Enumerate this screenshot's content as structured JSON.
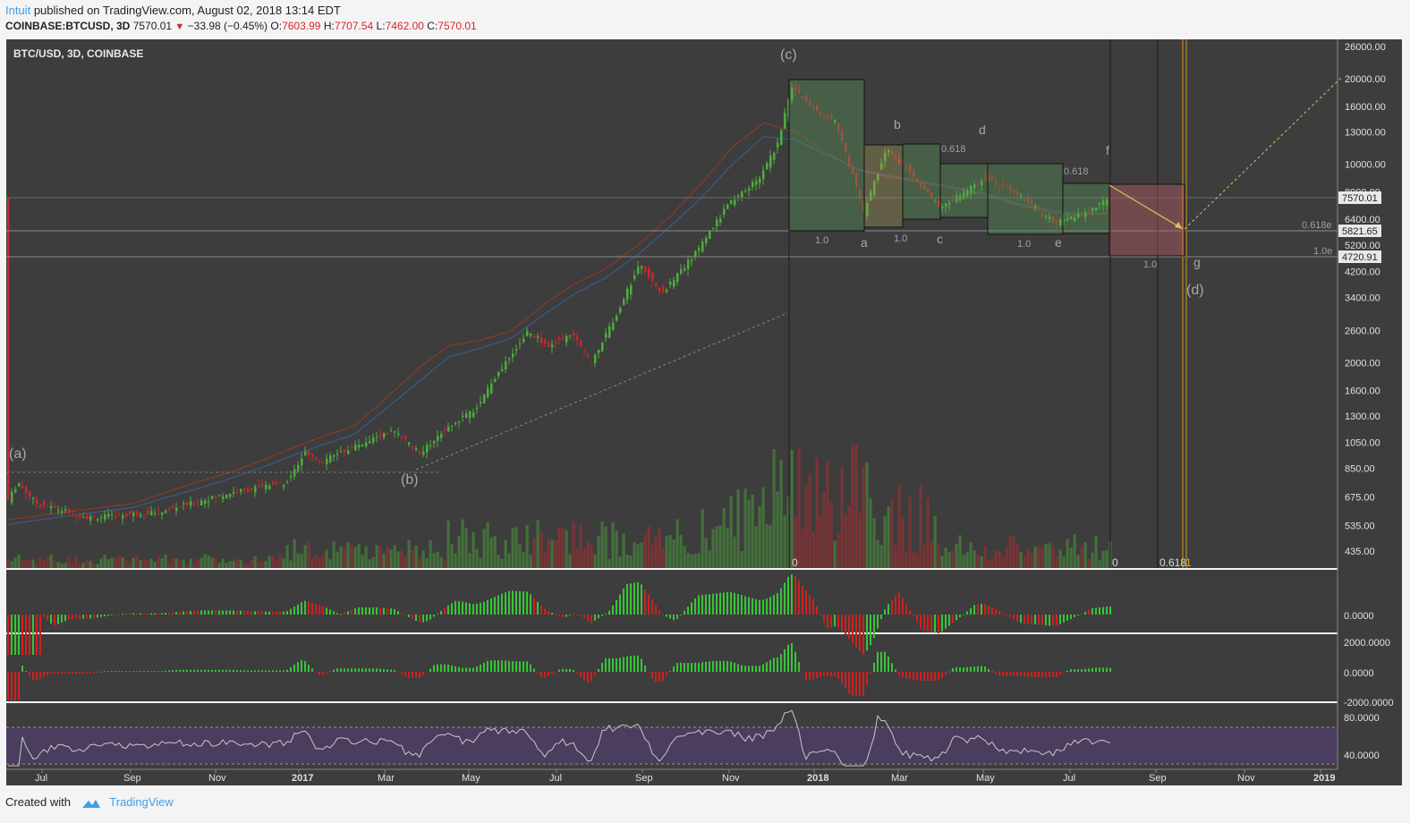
{
  "header": {
    "author": "Intuit",
    "published": "published on TradingView.com, August 02, 2018 13:14 EDT",
    "symbol": "COINBASE:BTCUSD, 3D",
    "last": "7570.01",
    "change": "−33.98 (−0.45%)",
    "o_label": "O:",
    "o": "7603.99",
    "h_label": "H:",
    "h": "7707.54",
    "l_label": "L:",
    "l": "7462.00",
    "c_label": "C:",
    "c": "7570.01"
  },
  "footer": {
    "created": "Created with",
    "brand": "TradingView"
  },
  "colors": {
    "bg": "#3d3d3d",
    "up": "#4caf3a",
    "down": "#c8282c",
    "rsi_fill": "#4a3d5e"
  },
  "chart_data": [
    {
      "type": "candlestick",
      "title": "BTC/USD, 3D, COINBASE",
      "scale": "log",
      "y_ticks": [
        26000,
        20000,
        16000,
        13000,
        10000,
        8000,
        6400,
        5200,
        4200,
        3400,
        2600,
        2000,
        1600,
        1300,
        1050,
        850,
        675,
        535,
        435
      ],
      "y_tick_labels": [
        "26000.00",
        "20000.00",
        "16000.00",
        "13000.00",
        "10000.00",
        "8000.00",
        "6400.00",
        "5200.00",
        "4200.00",
        "3400.00",
        "2600.00",
        "2000.00",
        "1600.00",
        "1300.00",
        "1050.00",
        "850.00",
        "675.00",
        "535.00",
        "435.00"
      ],
      "price_badges": [
        "7570.01",
        "5821.65",
        "4720.91"
      ],
      "x_labels": [
        "Jul",
        "Sep",
        "Nov",
        "2017",
        "Mar",
        "May",
        "Jul",
        "Sep",
        "Nov",
        "2018",
        "Mar",
        "May",
        "Jul",
        "Sep",
        "Nov",
        "2019"
      ],
      "wave_labels": [
        "(a)",
        "(b)",
        "(c)",
        "(d)",
        "a",
        "b",
        "c",
        "d",
        "e",
        "f",
        "g"
      ],
      "fib_labels": [
        "1.0",
        "1.0",
        "0.618",
        "1.0",
        "0.618",
        "1.0",
        "0.618e",
        "1.0e"
      ],
      "cycle_labels": [
        "0",
        "0",
        "0.618",
        "1"
      ],
      "ma_series": [
        {
          "values": [
            560,
            580,
            600,
            620,
            640,
            700,
            760,
            820,
            900,
            1000,
            1100,
            1200,
            1500,
            1900,
            2300,
            2400,
            2600,
            3200,
            3800,
            4300,
            5200,
            6500,
            8500,
            11500,
            14000,
            13000,
            11000,
            9500,
            9000,
            8600,
            8200,
            7800,
            7200,
            6800,
            6600,
            6700
          ]
        },
        {
          "values": [
            540,
            560,
            580,
            600,
            620,
            670,
            720,
            780,
            850,
            940,
            1030,
            1120,
            1380,
            1700,
            2100,
            2250,
            2450,
            2950,
            3500,
            4000,
            4800,
            6000,
            7600,
            10000,
            12500,
            12200,
            10800,
            9600,
            9100,
            8700,
            8300,
            7900,
            7300,
            6900,
            6700,
            6750
          ]
        }
      ]
    },
    {
      "type": "bar",
      "title": "",
      "y_ticks": [
        0
      ],
      "y_tick_labels": [
        "0.0000"
      ]
    },
    {
      "type": "bar",
      "title": "",
      "y_ticks": [
        2000,
        0,
        -2000
      ],
      "y_tick_labels": [
        "2000.0000",
        "0.0000",
        "-2000.0000"
      ]
    },
    {
      "type": "line",
      "title": "",
      "y_ticks": [
        80,
        40
      ],
      "y_tick_labels": [
        "80.0000",
        "40.0000"
      ],
      "bands": [
        70,
        30
      ]
    }
  ]
}
